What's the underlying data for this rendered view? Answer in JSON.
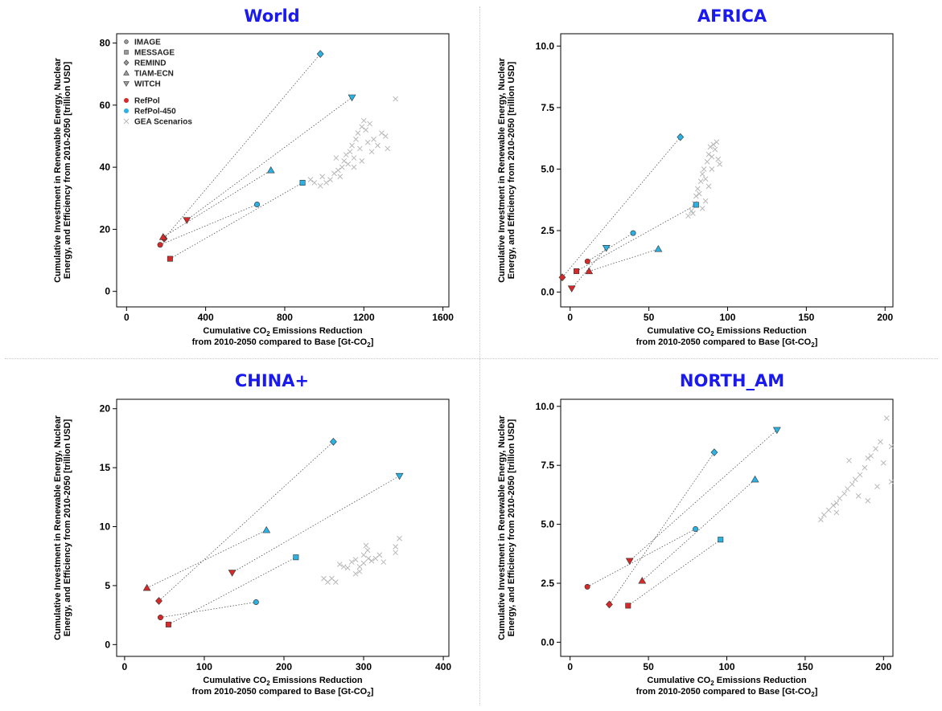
{
  "legend": {
    "models": [
      {
        "label": "IMAGE",
        "marker": "circle"
      },
      {
        "label": "MESSAGE",
        "marker": "square"
      },
      {
        "label": "REMIND",
        "marker": "diamond"
      },
      {
        "label": "TIAM-ECN",
        "marker": "triangle-up"
      },
      {
        "label": "WITCH",
        "marker": "triangle-down"
      }
    ],
    "scenarios": [
      {
        "label": "RefPol",
        "color": "#d52a2a"
      },
      {
        "label": "RefPol-450",
        "color": "#2cb1e3"
      },
      {
        "label": "GEA Scenarios",
        "color": "#b8b8b8"
      }
    ]
  },
  "axis_text": {
    "ylabel_line1": "Cumulative Investment in Renewable Energy, Nuclear",
    "ylabel_line2": "Energy, and Efficiency from 2010-2050 [trillion USD]",
    "xlabel_pre": "Cumulative CO",
    "xlabel_sub": "2",
    "xlabel_post": " Emissions Reduction",
    "xlabel_line2_pre": "from 2010-2050 compared to Base [Gt-CO",
    "xlabel_line2_sub": "2",
    "xlabel_line2_post": "]"
  },
  "chart_data": [
    {
      "type": "scatter",
      "title": "World",
      "xlim": [
        -50,
        1630
      ],
      "ylim": [
        -5,
        83
      ],
      "xticks": [
        0,
        400,
        800,
        1200,
        1600
      ],
      "xtick_labels": [
        "0",
        "400",
        "800",
        "1200",
        "1600"
      ],
      "yticks": [
        0,
        20,
        40,
        60,
        80
      ],
      "ytick_labels": [
        "0",
        "20",
        "40",
        "60",
        "80"
      ],
      "show_legend": true,
      "pairs": [
        {
          "model": "IMAGE",
          "refpol": [
            170,
            15
          ],
          "refpol450": [
            660,
            28
          ]
        },
        {
          "model": "MESSAGE",
          "refpol": [
            220,
            10.5
          ],
          "refpol450": [
            890,
            35
          ]
        },
        {
          "model": "REMIND",
          "refpol": [
            190,
            17
          ],
          "refpol450": [
            980,
            76.5
          ]
        },
        {
          "model": "TIAM-ECN",
          "refpol": [
            185,
            17.5
          ],
          "refpol450": [
            730,
            39
          ]
        },
        {
          "model": "WITCH",
          "refpol": [
            305,
            23
          ],
          "refpol450": [
            1140,
            62.5
          ]
        }
      ],
      "gea": [
        [
          930,
          36
        ],
        [
          950,
          35
        ],
        [
          980,
          34
        ],
        [
          990,
          37
        ],
        [
          1010,
          35
        ],
        [
          1030,
          36
        ],
        [
          1050,
          38
        ],
        [
          1070,
          39
        ],
        [
          1090,
          40
        ],
        [
          1080,
          37
        ],
        [
          1100,
          42
        ],
        [
          1110,
          44
        ],
        [
          1120,
          41
        ],
        [
          1130,
          45
        ],
        [
          1140,
          47
        ],
        [
          1150,
          43
        ],
        [
          1160,
          49
        ],
        [
          1170,
          51
        ],
        [
          1180,
          46
        ],
        [
          1190,
          53
        ],
        [
          1200,
          55
        ],
        [
          1210,
          52
        ],
        [
          1220,
          48
        ],
        [
          1230,
          54
        ],
        [
          1250,
          49
        ],
        [
          1270,
          47
        ],
        [
          1290,
          51
        ],
        [
          1310,
          50
        ],
        [
          1320,
          46
        ],
        [
          1360,
          62
        ],
        [
          1060,
          43
        ],
        [
          1150,
          40
        ],
        [
          1190,
          42
        ],
        [
          1240,
          45
        ]
      ]
    },
    {
      "type": "scatter",
      "title": "AFRICA",
      "xlim": [
        -6,
        205
      ],
      "ylim": [
        -0.6,
        10.5
      ],
      "xticks": [
        0,
        50,
        100,
        150,
        200
      ],
      "xtick_labels": [
        "0",
        "50",
        "100",
        "150",
        "200"
      ],
      "yticks": [
        0,
        2.5,
        5,
        7.5,
        10
      ],
      "ytick_labels": [
        "0.0",
        "2.5",
        "5.0",
        "7.5",
        "10.0"
      ],
      "show_legend": false,
      "pairs": [
        {
          "model": "IMAGE",
          "refpol": [
            11,
            1.25
          ],
          "refpol450": [
            40,
            2.4
          ]
        },
        {
          "model": "MESSAGE",
          "refpol": [
            4,
            0.85
          ],
          "refpol450": [
            80,
            3.55
          ]
        },
        {
          "model": "REMIND",
          "refpol": [
            -5,
            0.6
          ],
          "refpol450": [
            70,
            6.3
          ]
        },
        {
          "model": "TIAM-ECN",
          "refpol": [
            12,
            0.85
          ],
          "refpol450": [
            56,
            1.75
          ]
        },
        {
          "model": "WITCH",
          "refpol": [
            1,
            0.15
          ],
          "refpol450": [
            23,
            1.8
          ]
        }
      ],
      "gea": [
        [
          75,
          3.1
        ],
        [
          77,
          3.3
        ],
        [
          79,
          3.6
        ],
        [
          80,
          3.9
        ],
        [
          81,
          4.2
        ],
        [
          83,
          4.5
        ],
        [
          84,
          4.8
        ],
        [
          85,
          5.0
        ],
        [
          86,
          4.6
        ],
        [
          87,
          5.3
        ],
        [
          88,
          5.6
        ],
        [
          89,
          5.9
        ],
        [
          90,
          5.5
        ],
        [
          91,
          6.0
        ],
        [
          92,
          5.8
        ],
        [
          93,
          6.1
        ],
        [
          94,
          5.4
        ],
        [
          95,
          5.2
        ],
        [
          82,
          4.0
        ],
        [
          86,
          3.7
        ],
        [
          88,
          4.3
        ],
        [
          90,
          5.0
        ],
        [
          78,
          3.2
        ],
        [
          84,
          3.4
        ]
      ]
    },
    {
      "type": "scatter",
      "title": "CHINA+",
      "xlim": [
        -10,
        407
      ],
      "ylim": [
        -1,
        20.8
      ],
      "xticks": [
        0,
        100,
        200,
        300,
        400
      ],
      "xtick_labels": [
        "0",
        "100",
        "200",
        "300",
        "400"
      ],
      "yticks": [
        0,
        5,
        10,
        15,
        20
      ],
      "ytick_labels": [
        "0",
        "5",
        "10",
        "15",
        "20"
      ],
      "show_legend": false,
      "pairs": [
        {
          "model": "IMAGE",
          "refpol": [
            45,
            2.3
          ],
          "refpol450": [
            165,
            3.6
          ]
        },
        {
          "model": "MESSAGE",
          "refpol": [
            55,
            1.7
          ],
          "refpol450": [
            215,
            7.4
          ]
        },
        {
          "model": "REMIND",
          "refpol": [
            43,
            3.7
          ],
          "refpol450": [
            262,
            17.2
          ]
        },
        {
          "model": "TIAM-ECN",
          "refpol": [
            28,
            4.8
          ],
          "refpol450": [
            178,
            9.7
          ]
        },
        {
          "model": "WITCH",
          "refpol": [
            135,
            6.1
          ],
          "refpol450": [
            345,
            14.3
          ]
        }
      ],
      "gea": [
        [
          250,
          5.6
        ],
        [
          255,
          5.3
        ],
        [
          260,
          5.6
        ],
        [
          265,
          5.3
        ],
        [
          270,
          6.8
        ],
        [
          275,
          6.6
        ],
        [
          280,
          6.5
        ],
        [
          285,
          7.0
        ],
        [
          290,
          7.2
        ],
        [
          295,
          6.6
        ],
        [
          300,
          7.6
        ],
        [
          303,
          8.4
        ],
        [
          306,
          7.3
        ],
        [
          310,
          7.1
        ],
        [
          315,
          7.3
        ],
        [
          320,
          7.6
        ],
        [
          325,
          7.0
        ],
        [
          290,
          6.0
        ],
        [
          295,
          6.2
        ],
        [
          300,
          6.9
        ],
        [
          340,
          8.3
        ],
        [
          345,
          9.0
        ],
        [
          340,
          7.8
        ],
        [
          305,
          8.0
        ]
      ]
    },
    {
      "type": "scatter",
      "title": "NORTH_AM",
      "xlim": [
        -6,
        206
      ],
      "ylim": [
        -0.6,
        10.3
      ],
      "xticks": [
        0,
        50,
        100,
        150,
        200
      ],
      "xtick_labels": [
        "0",
        "50",
        "100",
        "150",
        "200"
      ],
      "yticks": [
        0,
        2.5,
        5,
        7.5,
        10
      ],
      "ytick_labels": [
        "0.0",
        "2.5",
        "5.0",
        "7.5",
        "10.0"
      ],
      "show_legend": false,
      "pairs": [
        {
          "model": "IMAGE",
          "refpol": [
            11,
            2.35
          ],
          "refpol450": [
            80,
            4.8
          ]
        },
        {
          "model": "MESSAGE",
          "refpol": [
            37,
            1.55
          ],
          "refpol450": [
            96,
            4.35
          ]
        },
        {
          "model": "REMIND",
          "refpol": [
            25,
            1.6
          ],
          "refpol450": [
            92,
            8.05
          ]
        },
        {
          "model": "TIAM-ECN",
          "refpol": [
            46,
            2.6
          ],
          "refpol450": [
            118,
            6.9
          ]
        },
        {
          "model": "WITCH",
          "refpol": [
            38,
            3.45
          ],
          "refpol450": [
            132,
            9.0
          ]
        }
      ],
      "gea": [
        [
          160,
          5.2
        ],
        [
          162,
          5.4
        ],
        [
          165,
          5.6
        ],
        [
          168,
          5.8
        ],
        [
          170,
          5.9
        ],
        [
          172,
          6.1
        ],
        [
          175,
          6.3
        ],
        [
          177,
          6.5
        ],
        [
          180,
          6.7
        ],
        [
          182,
          6.9
        ],
        [
          185,
          7.1
        ],
        [
          188,
          7.4
        ],
        [
          190,
          7.8
        ],
        [
          192,
          7.9
        ],
        [
          195,
          8.2
        ],
        [
          198,
          8.5
        ],
        [
          200,
          7.6
        ],
        [
          202,
          9.5
        ],
        [
          205,
          8.3
        ],
        [
          205,
          6.8
        ],
        [
          184,
          6.2
        ],
        [
          190,
          6.0
        ],
        [
          196,
          6.6
        ],
        [
          178,
          7.7
        ],
        [
          170,
          5.5
        ]
      ]
    }
  ]
}
